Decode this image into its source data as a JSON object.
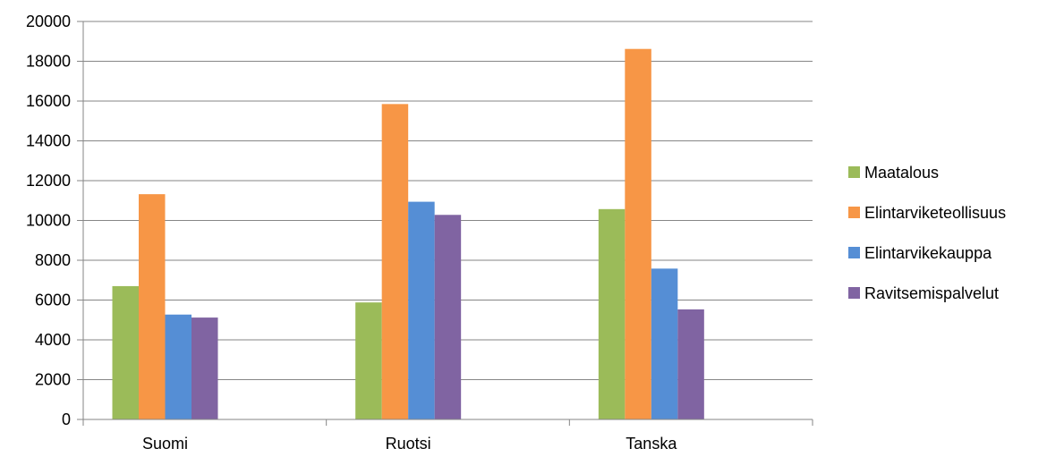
{
  "chart_data": {
    "type": "bar",
    "categories": [
      "Suomi",
      "Ruotsi",
      "Tanska"
    ],
    "series": [
      {
        "name": "Maatalous",
        "color": "#9BBB59",
        "values": [
          6700,
          5880,
          10570
        ]
      },
      {
        "name": "Elintarviketeollisuus",
        "color": "#F79646",
        "values": [
          11320,
          15850,
          18620
        ]
      },
      {
        "name": "Elintarvikekauppa",
        "color": "#558ED5",
        "values": [
          5270,
          10940,
          7580
        ]
      },
      {
        "name": "Ravitsemispalvelut",
        "color": "#8064A2",
        "values": [
          5120,
          10280,
          5530
        ]
      }
    ],
    "title": "",
    "xlabel": "",
    "ylabel": "",
    "ylim": [
      0,
      20000
    ],
    "yticks": [
      "0",
      "2000",
      "4000",
      "6000",
      "8000",
      "10000",
      "12000",
      "14000",
      "16000",
      "18000",
      "20000"
    ],
    "grid": true,
    "legend_position": "right"
  }
}
